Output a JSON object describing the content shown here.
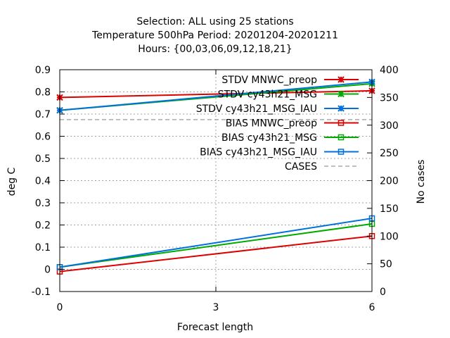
{
  "chart_data": {
    "type": "line",
    "title_lines": [
      "Selection: ALL using    25 stations",
      "Temperature 500hPa   Period: 20201204-20201211",
      "Hours: {00,03,06,09,12,18,21}"
    ],
    "xlabel": "Forecast length",
    "ylabel": "deg C",
    "y2label": "No cases",
    "x": [
      0,
      6
    ],
    "xticks": [
      "0",
      "3",
      "6"
    ],
    "xlim": [
      0,
      6
    ],
    "ylim": [
      -0.1,
      0.9
    ],
    "yticks": [
      "-0.1",
      "0",
      "0.1",
      "0.2",
      "0.3",
      "0.4",
      "0.5",
      "0.6",
      "0.7",
      "0.8",
      "0.9"
    ],
    "y2lim": [
      0,
      400
    ],
    "y2ticks": [
      "0",
      "50",
      "100",
      "150",
      "200",
      "250",
      "300",
      "350",
      "400"
    ],
    "grid": true,
    "legend_position": "top-right",
    "series": [
      {
        "name": "STDV MNWC_preop",
        "axis": "y1",
        "color": "#dd0000",
        "marker": "star",
        "values": [
          0.775,
          0.805
        ]
      },
      {
        "name": "STDV cy43h21_MSG",
        "axis": "y1",
        "color": "#00aa00",
        "marker": "star",
        "values": [
          0.717,
          0.837
        ]
      },
      {
        "name": "STDV cy43h21_MSG_IAU",
        "axis": "y1",
        "color": "#0070dd",
        "marker": "star",
        "values": [
          0.717,
          0.845
        ]
      },
      {
        "name": "BIAS MNWC_preop",
        "axis": "y1",
        "color": "#dd0000",
        "marker": "square",
        "values": [
          -0.01,
          0.15
        ]
      },
      {
        "name": "BIAS cy43h21_MSG",
        "axis": "y1",
        "color": "#00aa00",
        "marker": "square",
        "values": [
          0.01,
          0.205
        ]
      },
      {
        "name": "BIAS cy43h21_MSG_IAU",
        "axis": "y1",
        "color": "#0070dd",
        "marker": "square",
        "values": [
          0.01,
          0.23
        ]
      },
      {
        "name": "CASES",
        "axis": "y2",
        "color": "#999999",
        "marker": "none",
        "dashed": true,
        "values": [
          310,
          310
        ]
      }
    ]
  }
}
